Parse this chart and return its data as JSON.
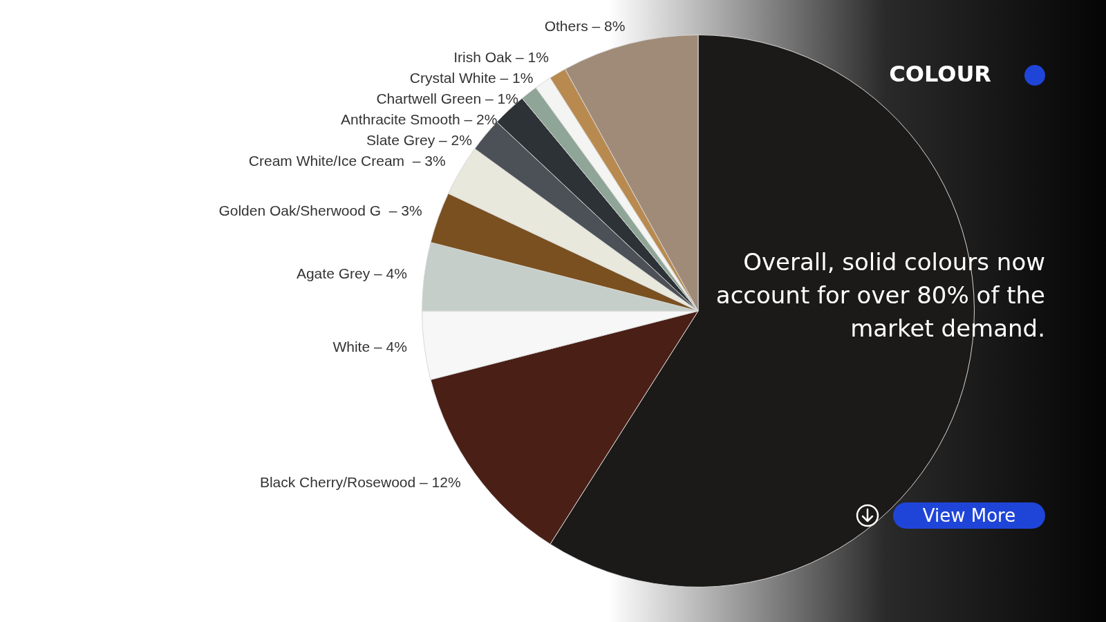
{
  "chart_data": {
    "type": "pie",
    "title": "COLOUR",
    "categories": [
      null,
      "Black Cherry/Rosewood –",
      "White –",
      "Agate Grey –",
      "Golden Oak/Sherwood G  –",
      "Cream White/Ice Cream  –",
      "Slate Grey –",
      "Anthracite Smooth –",
      "Chartwell Green –",
      "Crystal White –",
      "Irish Oak –",
      "Others –"
    ],
    "values": [
      59,
      12,
      4,
      4,
      3,
      3,
      2,
      2,
      1,
      1,
      1,
      8
    ],
    "value_labels": [
      null,
      "12%",
      "4%",
      "4%",
      "3%",
      "3%",
      "2%",
      "2%",
      "1%",
      "1%",
      "1%",
      "8%"
    ],
    "colors": [
      "#1c1a18",
      "#4a1f16",
      "#f7f7f7",
      "#c5cec9",
      "#7a5020",
      "#e8e8dc",
      "#4c5157",
      "#2d3236",
      "#8fa597",
      "#f4f4f2",
      "#b98a50",
      "#a08b78"
    ],
    "legend": false,
    "annotations": [
      "Overall, solid colours now account for over 80% of the market demand.",
      "View More"
    ]
  }
}
